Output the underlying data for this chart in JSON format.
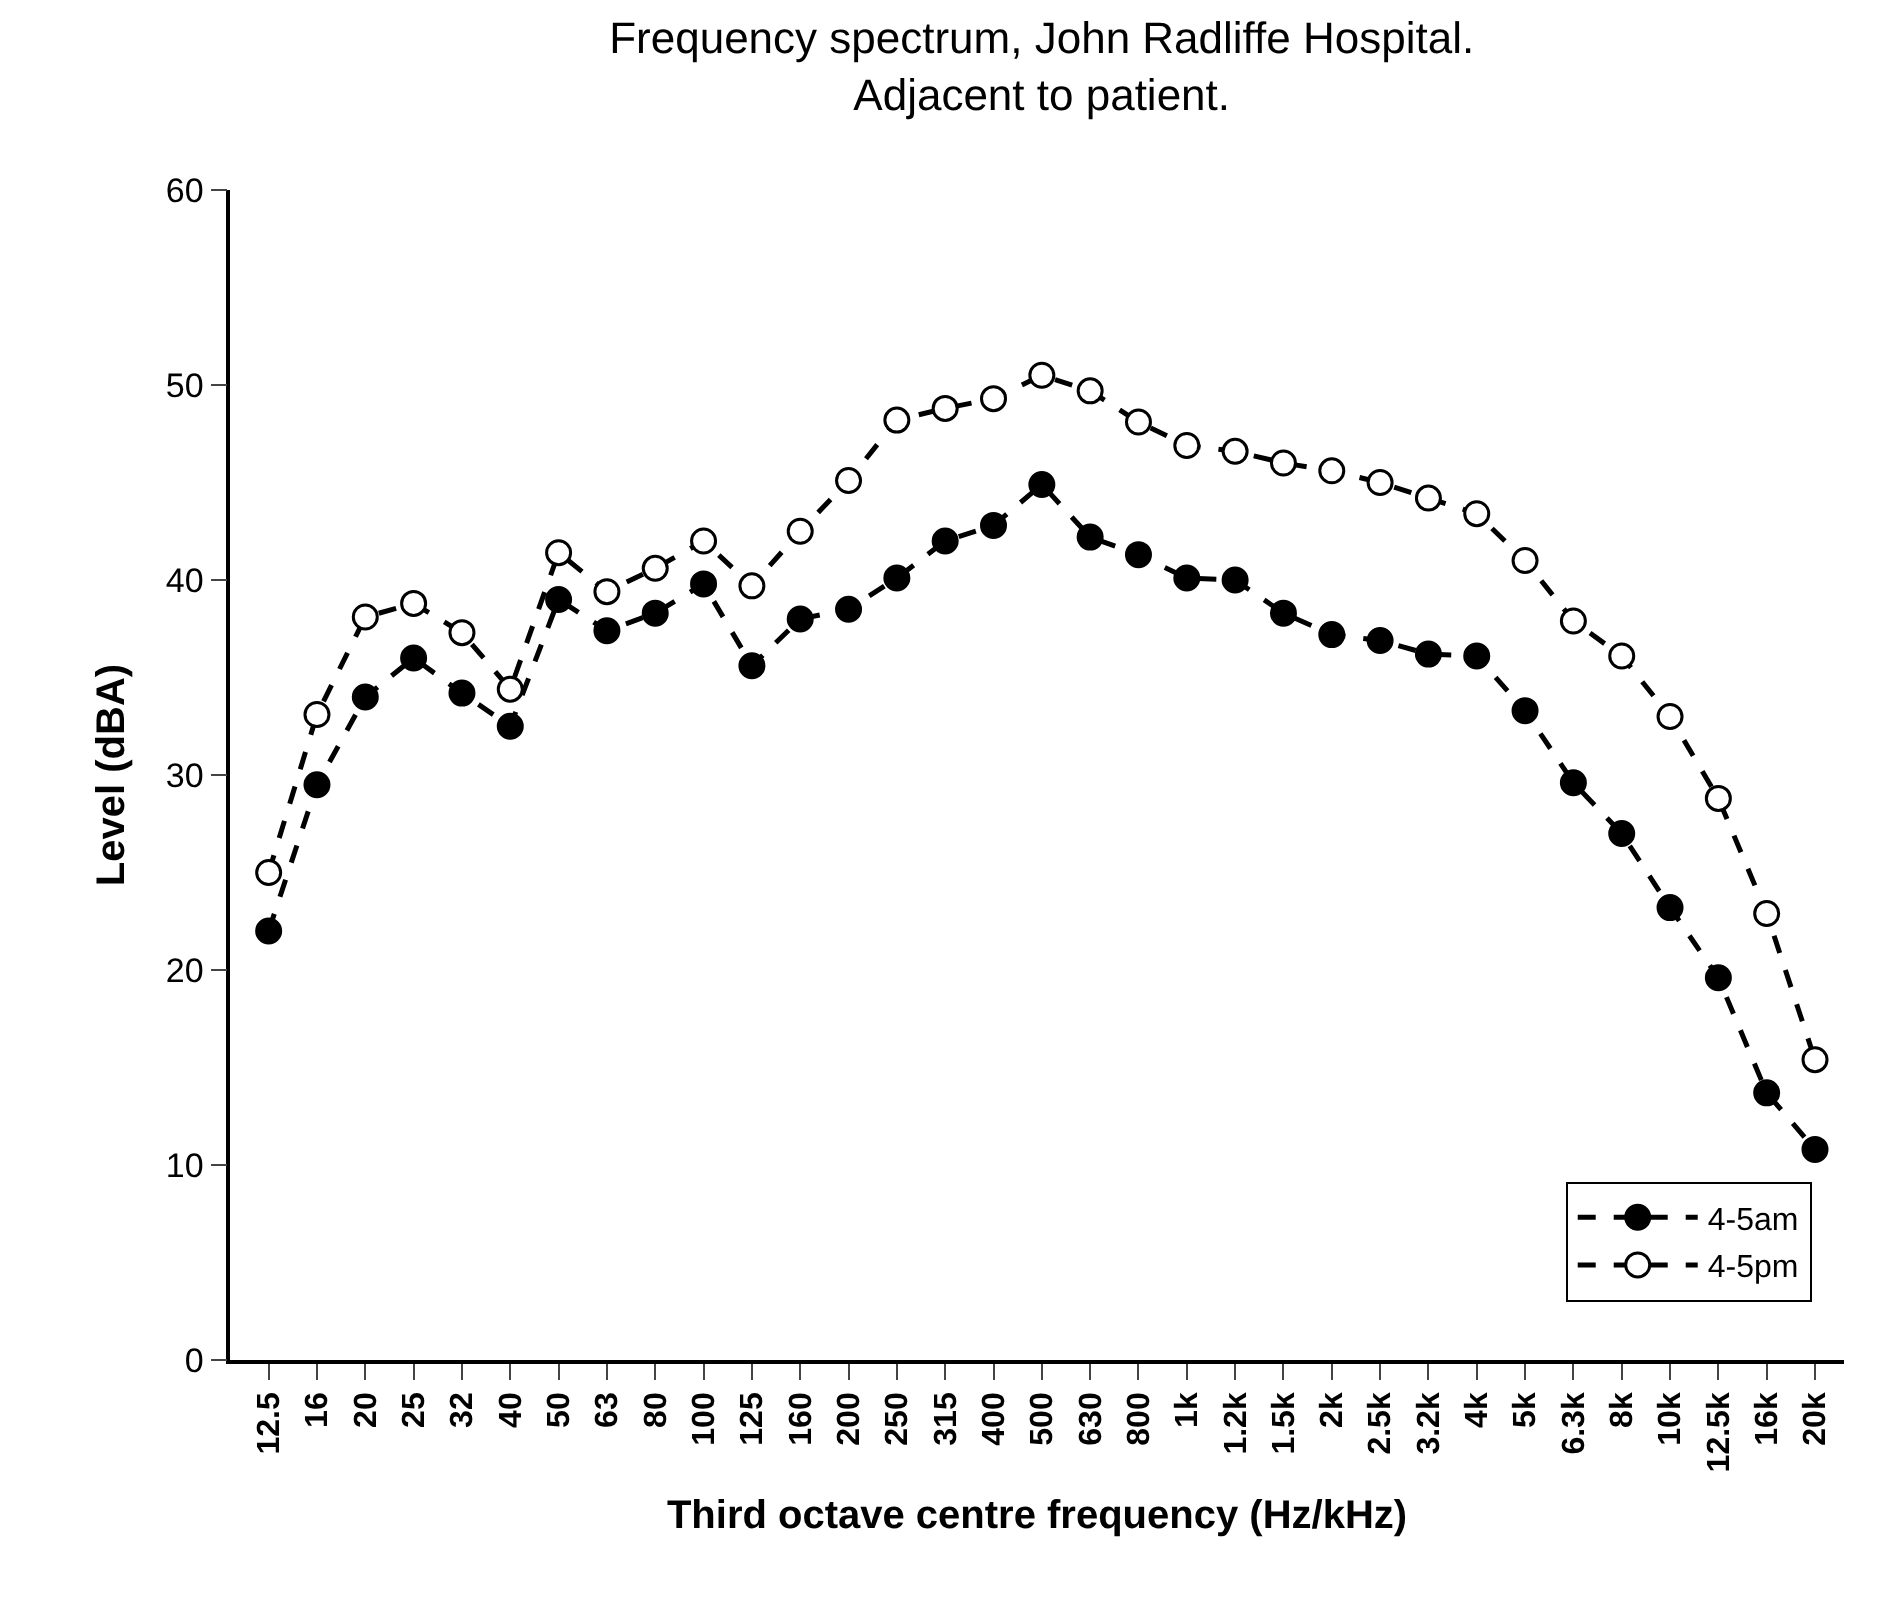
{
  "chart_data": {
    "type": "line",
    "title": "Frequency spectrum, John Radliffe Hospital.\nAdjacent to patient.",
    "xlabel": "Third octave centre frequency (Hz/kHz)",
    "ylabel": "Level (dBA)",
    "categories": [
      "12.5",
      "16",
      "20",
      "25",
      "32",
      "40",
      "50",
      "63",
      "80",
      "100",
      "125",
      "160",
      "200",
      "250",
      "315",
      "400",
      "500",
      "630",
      "800",
      "1k",
      "1.2k",
      "1.5k",
      "2k",
      "2.5k",
      "3.2k",
      "4k",
      "5k",
      "6.3k",
      "8k",
      "10k",
      "12.5k",
      "16k",
      "20k"
    ],
    "series": [
      {
        "name": "4-5am",
        "color": "#000000",
        "values": [
          22,
          29.5,
          34,
          36,
          34.2,
          32.5,
          39,
          37.4,
          38.3,
          39.8,
          35.6,
          38,
          38.5,
          40.1,
          42,
          42.8,
          44.9,
          42.2,
          41.3,
          40.1,
          40,
          38.3,
          37.2,
          36.9,
          36.2,
          36.1,
          33.3,
          29.6,
          27,
          23.2,
          19.6,
          13.7,
          10.8
        ]
      },
      {
        "name": "4-5pm",
        "color": "#ffffff",
        "values": [
          25,
          33.1,
          38.1,
          38.8,
          37.3,
          34.4,
          41.4,
          39.4,
          40.6,
          42,
          39.7,
          42.5,
          45.1,
          48.2,
          48.8,
          49.3,
          50.5,
          49.7,
          48.1,
          46.9,
          46.6,
          46,
          45.6,
          45,
          44.2,
          43.4,
          41,
          37.9,
          36.1,
          33,
          28.8,
          22.9,
          15.4
        ]
      }
    ],
    "ylim": [
      0,
      60
    ],
    "yticks": [
      0,
      10,
      20,
      30,
      40,
      50,
      60
    ],
    "legend": "bottom right",
    "marker": "circle",
    "line_style": "dashed"
  }
}
